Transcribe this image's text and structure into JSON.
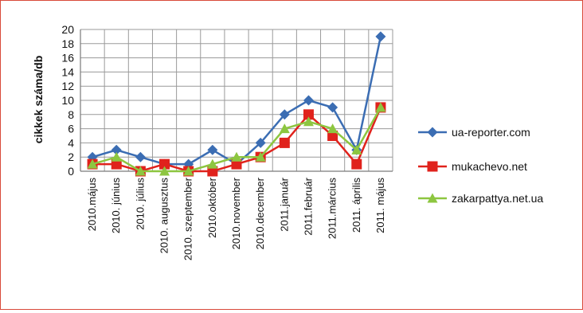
{
  "chart_data": {
    "type": "line",
    "ylabel": "cikkek száma/db",
    "ylim": [
      0,
      20
    ],
    "yticks": [
      "0",
      "2",
      "4",
      "6",
      "8",
      "10",
      "12",
      "14",
      "16",
      "18",
      "20"
    ],
    "grid": true,
    "legend": "right",
    "categories": [
      "2010.május",
      "2010. június",
      "2010. július",
      "2010. augusztus",
      "2010. szeptember",
      "2010.október",
      "2010.november",
      "2010.december",
      "2011.január",
      "2011.február",
      "2011.március",
      "2011. április",
      "2011. május"
    ],
    "series": [
      {
        "name": "ua-reporter.com",
        "color": "#3b6db3",
        "marker": "diamond",
        "values": [
          2,
          3,
          2,
          1,
          1,
          3,
          1,
          4,
          8,
          10,
          9,
          3,
          19
        ]
      },
      {
        "name": "mukachevo.net",
        "color": "#e0221c",
        "marker": "square",
        "values": [
          1,
          1,
          0,
          1,
          0,
          0,
          1,
          2,
          4,
          8,
          5,
          1,
          9
        ]
      },
      {
        "name": "zakarpattya.net.ua",
        "color": "#8dc640",
        "marker": "triangle",
        "values": [
          1,
          2,
          0,
          0,
          0,
          1,
          2,
          2,
          6,
          7,
          6,
          3,
          9
        ]
      }
    ]
  }
}
